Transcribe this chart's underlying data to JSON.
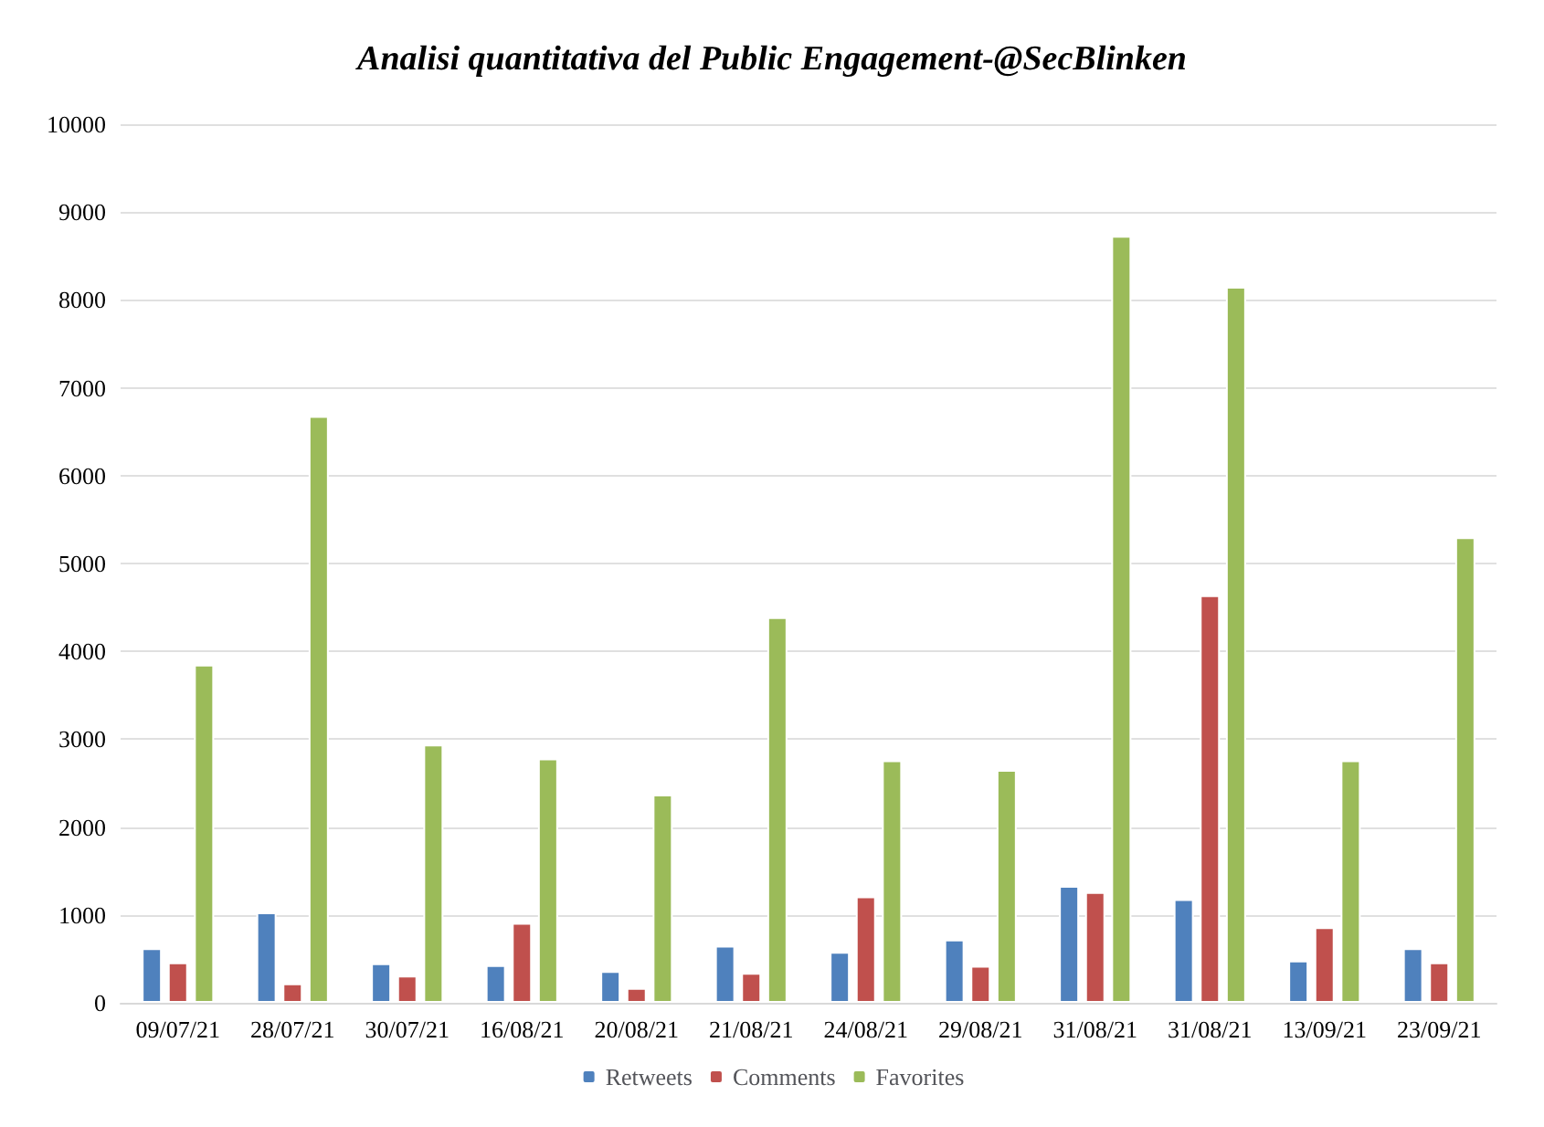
{
  "chart_data": {
    "type": "bar",
    "title": "Analisi quantitativa del Public Engagement-@SecBlinken",
    "categories": [
      "09/07/21",
      "28/07/21",
      "30/07/21",
      "16/08/21",
      "20/08/21",
      "21/08/21",
      "24/08/21",
      "29/08/21",
      "31/08/21",
      "31/08/21",
      "13/09/21",
      "23/09/21"
    ],
    "series": [
      {
        "name": "Retweets",
        "color": "#4f81bd",
        "values": [
          620,
          1030,
          450,
          430,
          360,
          650,
          580,
          720,
          1330,
          1180,
          480,
          620
        ]
      },
      {
        "name": "Comments",
        "color": "#c0504d",
        "values": [
          460,
          220,
          310,
          910,
          170,
          340,
          1210,
          420,
          1260,
          4640,
          860,
          460
        ]
      },
      {
        "name": "Favorites",
        "color": "#9bbb59",
        "values": [
          3850,
          6680,
          2940,
          2780,
          2370,
          4390,
          2760,
          2650,
          8730,
          8150,
          2760,
          5300
        ]
      }
    ],
    "ylim": [
      0,
      10000
    ],
    "yticks": [
      0,
      1000,
      2000,
      3000,
      4000,
      5000,
      6000,
      7000,
      8000,
      9000,
      10000
    ],
    "grid": "y",
    "legend": "bottom"
  }
}
